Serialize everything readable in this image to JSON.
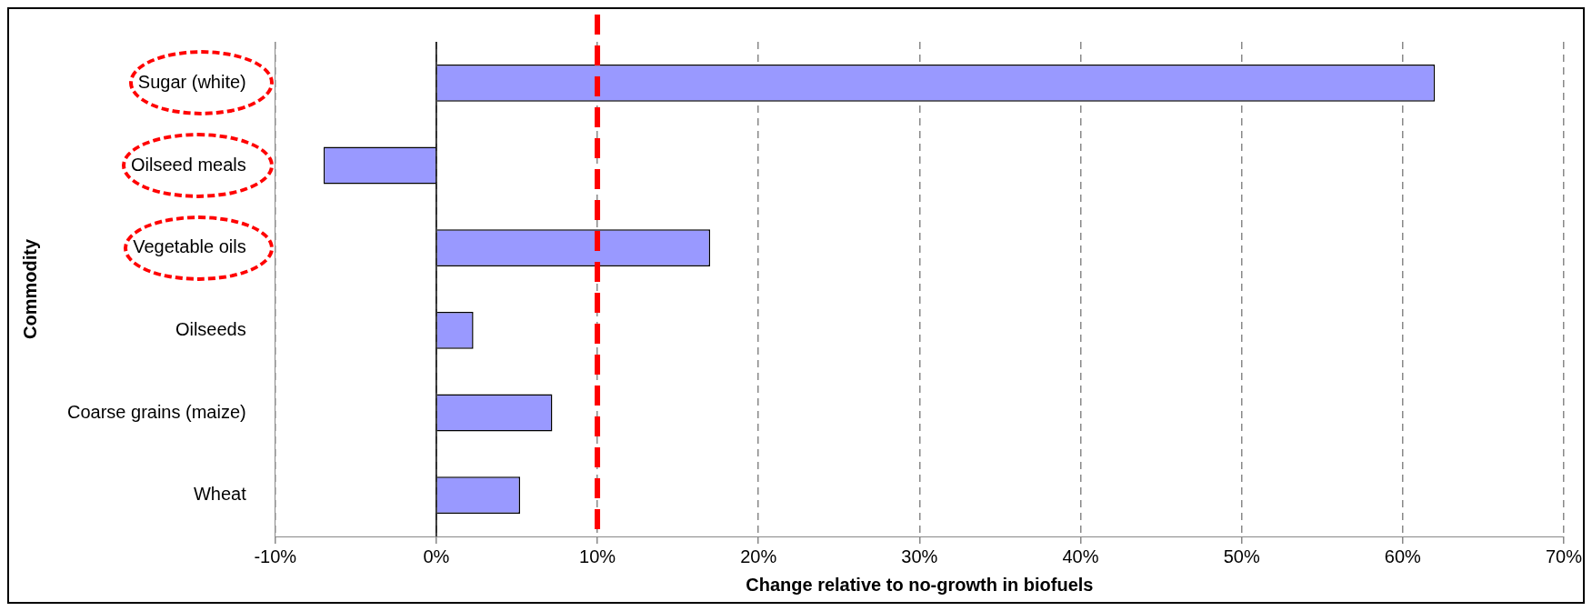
{
  "chart_data": {
    "type": "bar",
    "orientation": "horizontal",
    "xlabel": "Change relative to no-growth in biofuels",
    "ylabel": "Commodity",
    "categories": [
      "Sugar (white)",
      "Oilseed meals",
      "Vegetable oils",
      "Oilseeds",
      "Coarse grains (maize)",
      "Wheat"
    ],
    "values": [
      62,
      -7,
      17,
      2.3,
      7.2,
      5.2
    ],
    "color": "#9999ff",
    "xlim": [
      -10,
      70
    ],
    "xticks": [
      {
        "value": -10,
        "label": "-10%"
      },
      {
        "value": 0,
        "label": "0%"
      },
      {
        "value": 10,
        "label": "10%"
      },
      {
        "value": 20,
        "label": "20%"
      },
      {
        "value": 30,
        "label": "30%"
      },
      {
        "value": 40,
        "label": "40%"
      },
      {
        "value": 50,
        "label": "50%"
      },
      {
        "value": 60,
        "label": "60%"
      },
      {
        "value": 70,
        "label": "70%"
      }
    ],
    "grid": "x",
    "legend": false,
    "ref_lines": [
      {
        "axis": "x",
        "value": 0,
        "color": "#000000",
        "line_style": "solid"
      },
      {
        "axis": "x",
        "value": 10,
        "color": "#ff0000",
        "line_style": "dashed"
      }
    ]
  }
}
